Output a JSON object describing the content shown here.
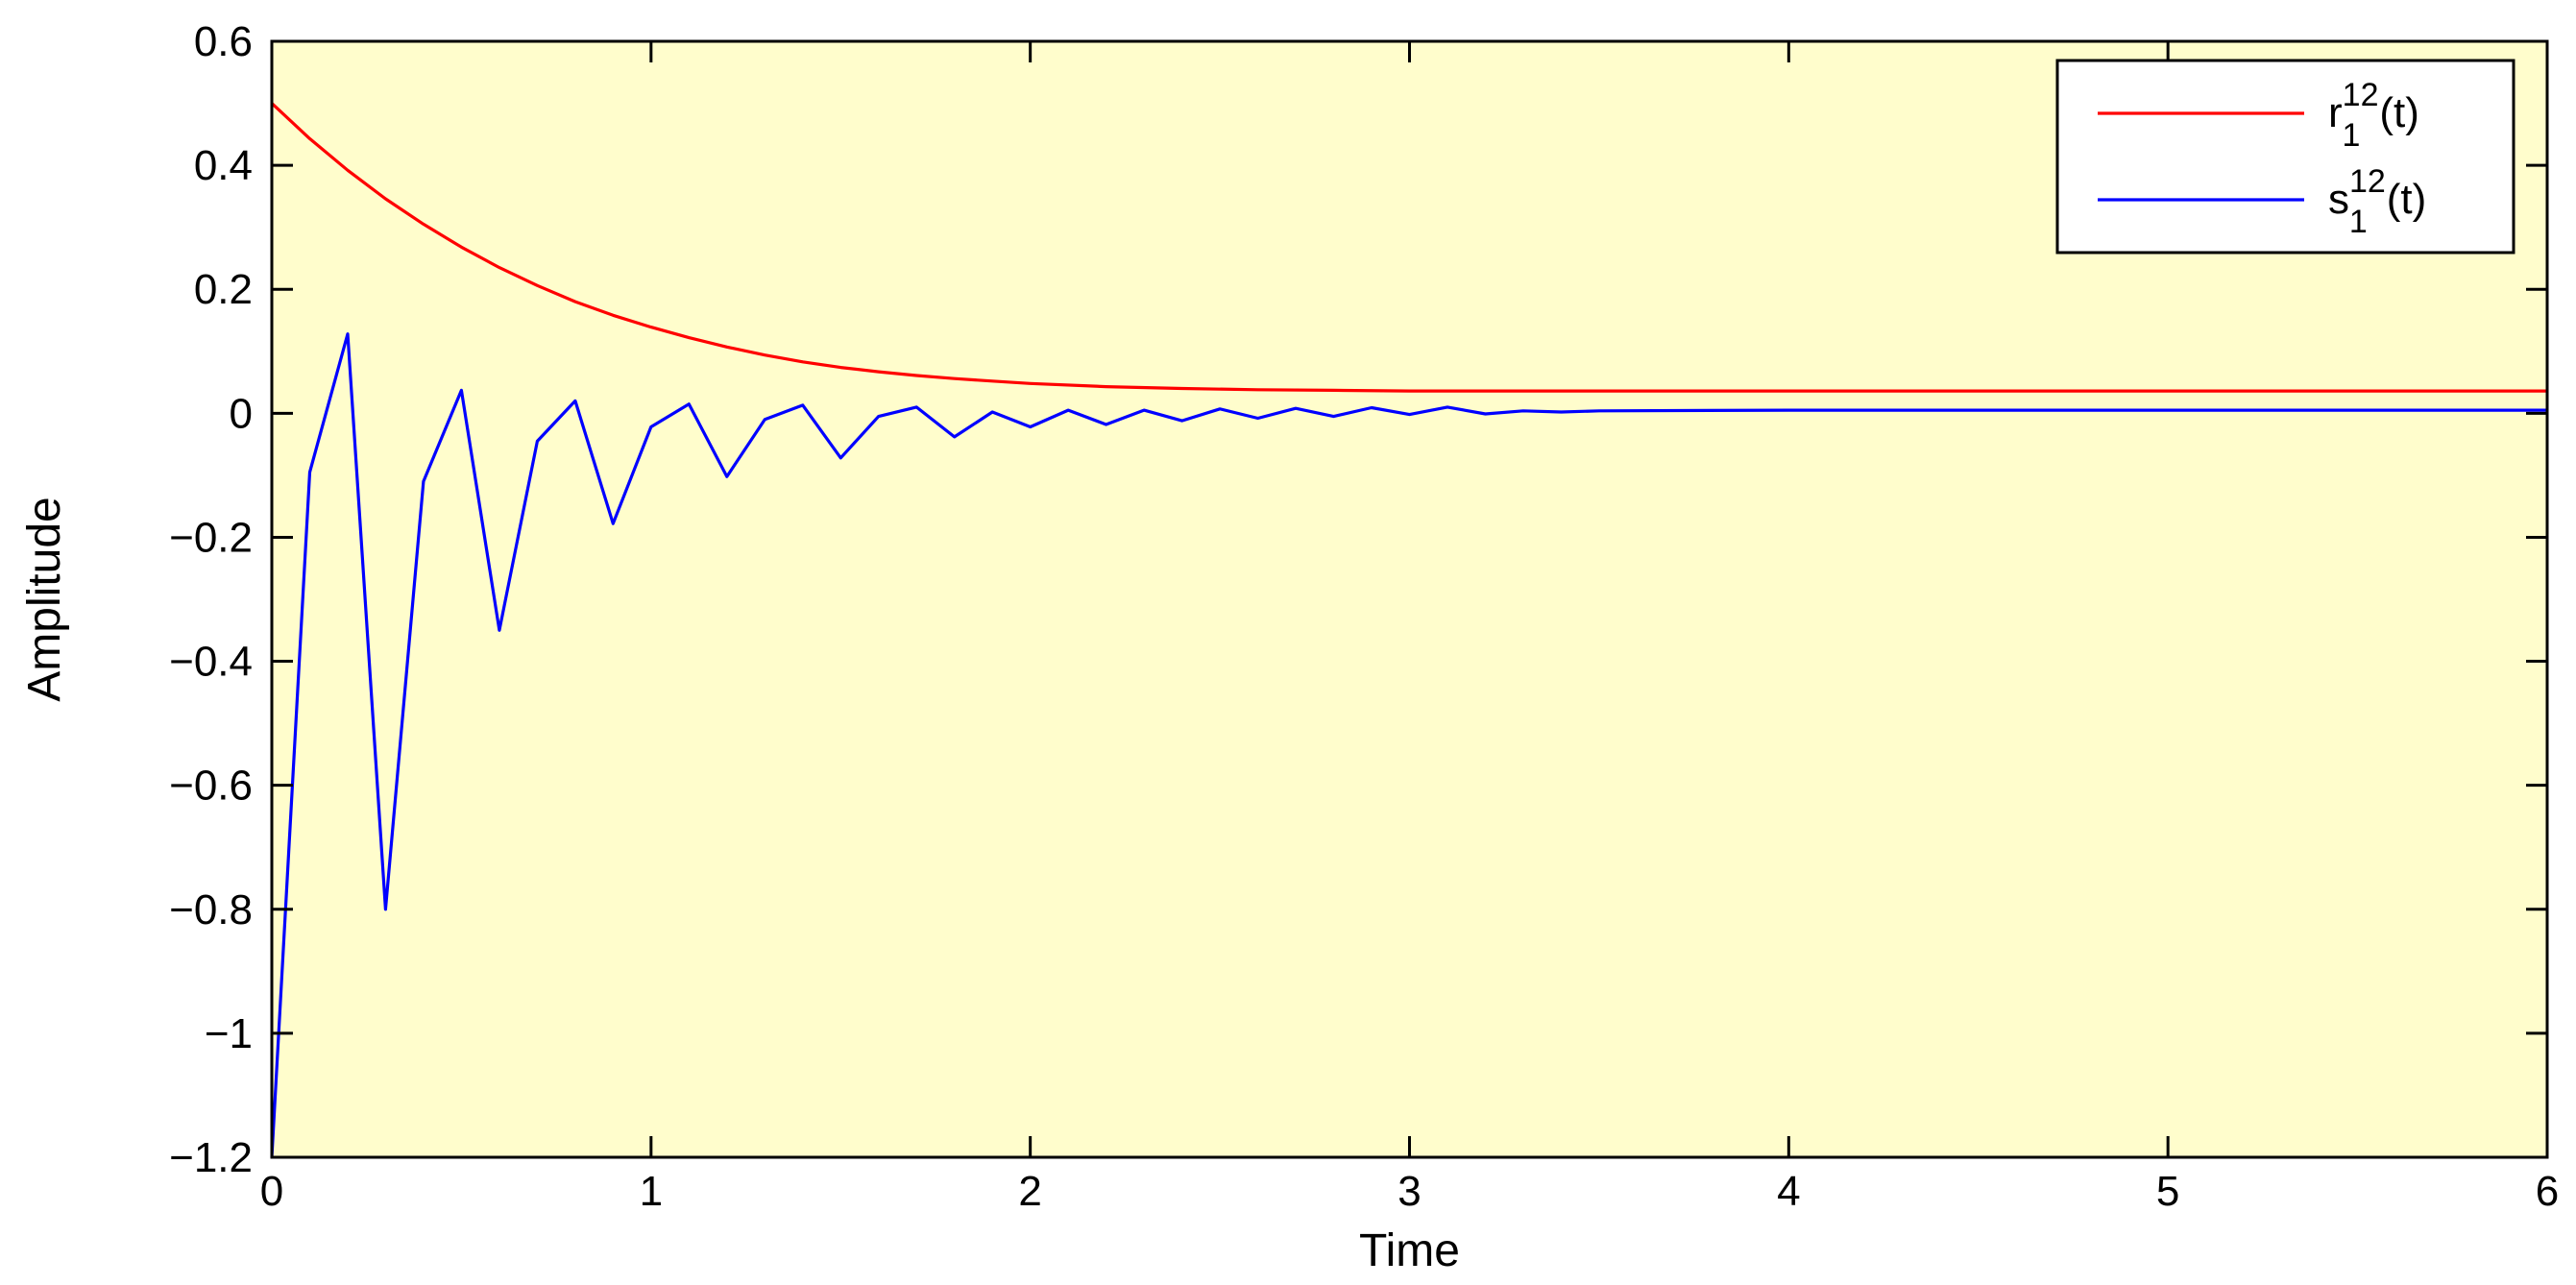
{
  "chart_data": {
    "type": "line",
    "title": "",
    "xlabel": "Time",
    "ylabel": "Amplitude",
    "xlim": [
      0,
      6
    ],
    "ylim": [
      -1.2,
      0.6
    ],
    "xticks": [
      0,
      1,
      2,
      3,
      4,
      5,
      6
    ],
    "yticks": [
      0.6,
      0.4,
      0.2,
      0,
      -0.2,
      -0.4,
      -0.6,
      -0.8,
      -1,
      -1.2
    ],
    "xtick_labels": [
      "0",
      "1",
      "2",
      "3",
      "4",
      "5",
      "6"
    ],
    "ytick_labels": [
      "0.6",
      "0.4",
      "0.2",
      "0",
      "−0.2",
      "−0.4",
      "−0.6",
      "−0.8",
      "−1",
      "−1.2"
    ],
    "grid": false,
    "legend_position": "top-right",
    "plot_background": "#fffdcc",
    "series": [
      {
        "name": "r",
        "name_sup": "12",
        "name_sub": "1",
        "name_suffix": "(t)",
        "color": "#ff0000",
        "x": [
          0,
          0.1,
          0.2,
          0.3,
          0.4,
          0.5,
          0.6,
          0.7,
          0.8,
          0.9,
          1.0,
          1.1,
          1.2,
          1.3,
          1.4,
          1.5,
          1.6,
          1.7,
          1.8,
          1.9,
          2.0,
          2.2,
          2.4,
          2.6,
          2.8,
          3.0,
          3.5,
          4.0,
          5.0,
          6.0
        ],
        "y": [
          0.5,
          0.443,
          0.392,
          0.346,
          0.305,
          0.268,
          0.235,
          0.206,
          0.18,
          0.158,
          0.139,
          0.122,
          0.107,
          0.094,
          0.083,
          0.074,
          0.067,
          0.061,
          0.056,
          0.052,
          0.048,
          0.043,
          0.04,
          0.038,
          0.037,
          0.036,
          0.036,
          0.036,
          0.036,
          0.036
        ]
      },
      {
        "name": "s",
        "name_sup": "12",
        "name_sub": "1",
        "name_suffix": "(t)",
        "color": "#0000ff",
        "x": [
          0,
          0.1,
          0.2,
          0.3,
          0.4,
          0.5,
          0.6,
          0.7,
          0.8,
          0.9,
          1.0,
          1.1,
          1.2,
          1.3,
          1.4,
          1.5,
          1.6,
          1.7,
          1.8,
          1.9,
          2.0,
          2.1,
          2.2,
          2.3,
          2.4,
          2.5,
          2.6,
          2.7,
          2.8,
          2.9,
          3.0,
          3.1,
          3.2,
          3.3,
          3.4,
          3.5,
          4.0,
          5.0,
          6.0
        ],
        "y": [
          -1.2,
          -0.095,
          0.128,
          -0.8,
          -0.11,
          0.037,
          -0.35,
          -0.045,
          0.02,
          -0.178,
          -0.022,
          0.015,
          -0.102,
          -0.01,
          0.013,
          -0.072,
          -0.005,
          0.01,
          -0.038,
          0.002,
          -0.022,
          0.005,
          -0.018,
          0.005,
          -0.012,
          0.007,
          -0.008,
          0.008,
          -0.005,
          0.009,
          -0.002,
          0.01,
          -0.001,
          0.004,
          0.002,
          0.004,
          0.005,
          0.005,
          0.005
        ]
      }
    ]
  }
}
